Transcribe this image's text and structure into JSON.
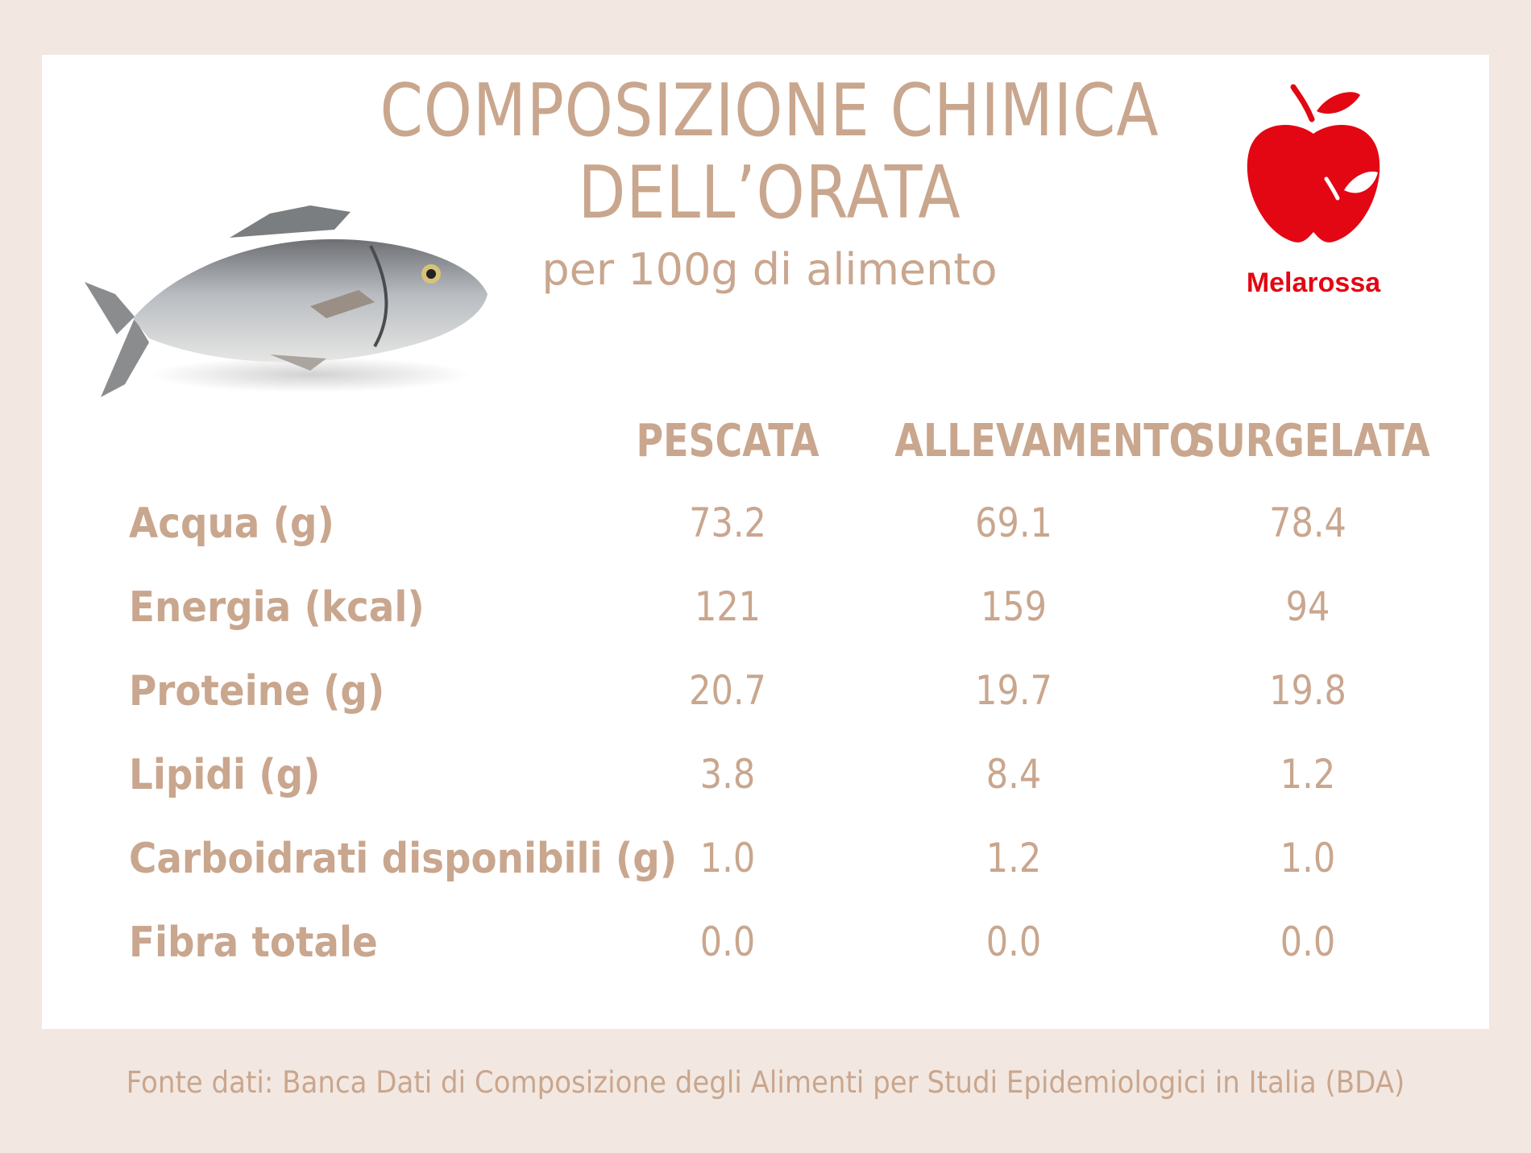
{
  "title_line1": "COMPOSIZIONE CHIMICA",
  "title_line2": "DELL’ORATA",
  "subtitle": "per 100g di alimento",
  "brand": "Melarossa",
  "columns": [
    "PESCATA",
    "ALLEVAMENTO",
    "SURGELATA"
  ],
  "rows": [
    {
      "label": "Acqua (g)",
      "values": [
        "73.2",
        "69.1",
        "78.4"
      ]
    },
    {
      "label": "Energia (kcal)",
      "values": [
        "121",
        "159",
        "94"
      ]
    },
    {
      "label": "Proteine (g)",
      "values": [
        "20.7",
        "19.7",
        "19.8"
      ]
    },
    {
      "label": "Lipidi (g)",
      "values": [
        "3.8",
        "8.4",
        "1.2"
      ]
    },
    {
      "label": "Carboidrati disponibili (g)",
      "values": [
        "1.0",
        "1.2",
        "1.0"
      ]
    },
    {
      "label": "Fibra totale",
      "values": [
        "0.0",
        "0.0",
        "0.0"
      ]
    }
  ],
  "source": "Fonte dati: Banca Dati di Composizione degli Alimenti per Studi Epidemiologici in Italia (BDA)",
  "colors": {
    "background": "#f2e8e1",
    "card": "#ffffff",
    "text": "#c9a68e",
    "brand": "#e30613"
  }
}
